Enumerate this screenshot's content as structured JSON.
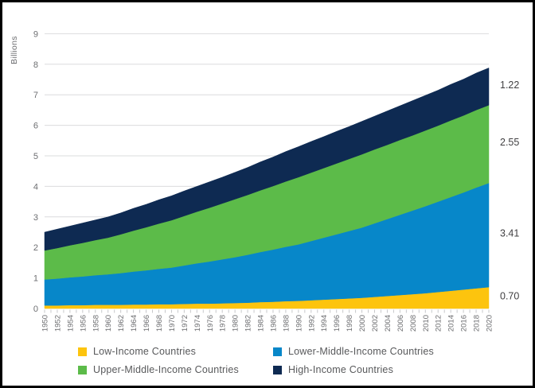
{
  "chart_data": {
    "type": "area",
    "stacked": true,
    "title": "",
    "xlabel": "",
    "ylabel": "Billions",
    "ylim": [
      0,
      9
    ],
    "y_ticks": [
      0,
      1,
      2,
      3,
      4,
      5,
      6,
      7,
      8,
      9
    ],
    "grid": "horizontal",
    "legend_position": "bottom",
    "x": [
      1950,
      1952,
      1954,
      1956,
      1958,
      1960,
      1962,
      1964,
      1966,
      1968,
      1970,
      1972,
      1974,
      1976,
      1978,
      1980,
      1982,
      1984,
      1986,
      1988,
      1990,
      1992,
      1994,
      1996,
      1998,
      2000,
      2002,
      2004,
      2006,
      2008,
      2010,
      2012,
      2014,
      2016,
      2018,
      2020
    ],
    "series": [
      {
        "name": "Low-Income Countries",
        "color": "#FDC40E",
        "end_label": "0.70",
        "values": [
          0.1,
          0.1,
          0.11,
          0.11,
          0.12,
          0.12,
          0.12,
          0.13,
          0.13,
          0.14,
          0.14,
          0.15,
          0.16,
          0.16,
          0.17,
          0.18,
          0.19,
          0.21,
          0.22,
          0.24,
          0.25,
          0.27,
          0.29,
          0.31,
          0.33,
          0.35,
          0.38,
          0.41,
          0.44,
          0.47,
          0.5,
          0.54,
          0.58,
          0.62,
          0.66,
          0.7
        ]
      },
      {
        "name": "Lower-Middle-Income Countries",
        "color": "#0787C9",
        "end_label": "3.41",
        "values": [
          0.85,
          0.88,
          0.91,
          0.94,
          0.97,
          1.0,
          1.04,
          1.08,
          1.12,
          1.16,
          1.2,
          1.26,
          1.32,
          1.38,
          1.44,
          1.5,
          1.57,
          1.64,
          1.71,
          1.78,
          1.85,
          1.94,
          2.03,
          2.12,
          2.21,
          2.3,
          2.41,
          2.52,
          2.63,
          2.74,
          2.85,
          2.96,
          3.07,
          3.18,
          3.3,
          3.41
        ]
      },
      {
        "name": "Upper-Middle-Income Countries",
        "color": "#5CBB49",
        "end_label": "2.55",
        "values": [
          0.95,
          1.0,
          1.05,
          1.1,
          1.15,
          1.2,
          1.27,
          1.34,
          1.41,
          1.48,
          1.55,
          1.62,
          1.69,
          1.76,
          1.83,
          1.9,
          1.96,
          2.02,
          2.08,
          2.14,
          2.2,
          2.24,
          2.28,
          2.32,
          2.36,
          2.4,
          2.42,
          2.43,
          2.45,
          2.46,
          2.48,
          2.49,
          2.51,
          2.52,
          2.54,
          2.55
        ]
      },
      {
        "name": "High-Income Countries",
        "color": "#0E2A52",
        "end_label": "1.22",
        "values": [
          0.6,
          0.62,
          0.63,
          0.65,
          0.66,
          0.68,
          0.7,
          0.73,
          0.75,
          0.78,
          0.8,
          0.82,
          0.83,
          0.85,
          0.86,
          0.88,
          0.9,
          0.93,
          0.95,
          0.98,
          1.0,
          1.02,
          1.03,
          1.05,
          1.06,
          1.08,
          1.09,
          1.11,
          1.12,
          1.14,
          1.15,
          1.16,
          1.18,
          1.19,
          1.21,
          1.22
        ]
      }
    ],
    "style_colors": {
      "gridline": "#DBDCDD",
      "tick": "#C7C8CA",
      "axis_text": "#6D6E71",
      "end_label_text": "#414042",
      "legend_text": "#58595B"
    }
  }
}
